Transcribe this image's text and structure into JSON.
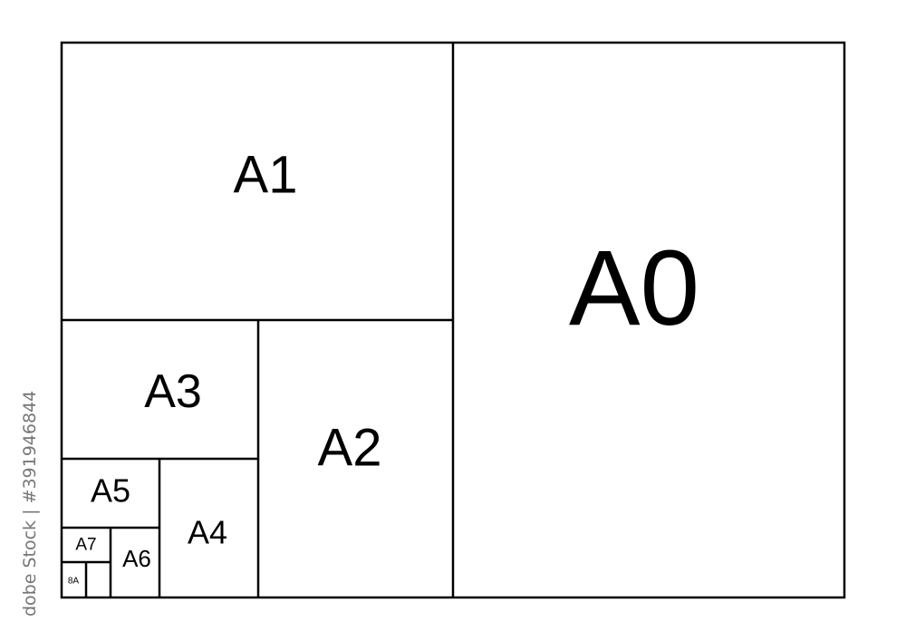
{
  "sheets": [
    {
      "id": "a0",
      "label": "A0"
    },
    {
      "id": "a1",
      "label": "A1"
    },
    {
      "id": "a2",
      "label": "A2"
    },
    {
      "id": "a3",
      "label": "A3"
    },
    {
      "id": "a4",
      "label": "A4"
    },
    {
      "id": "a5",
      "label": "A5"
    },
    {
      "id": "a6",
      "label": "A6"
    },
    {
      "id": "a7",
      "label": "A7"
    },
    {
      "id": "a8",
      "label": "8A"
    }
  ],
  "watermark": "dobe Stock | #391946844",
  "colors": {
    "line": "#000000",
    "background": "#ffffff",
    "watermark": "#777777"
  }
}
